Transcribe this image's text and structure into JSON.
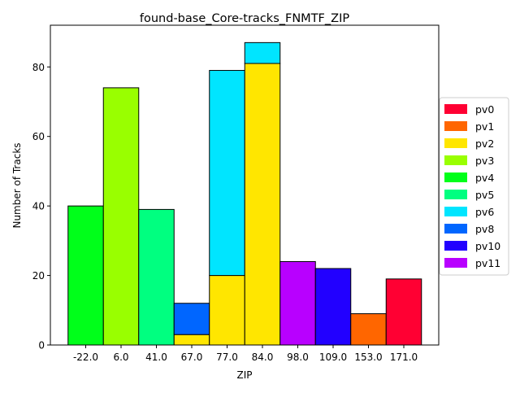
{
  "chart_data": {
    "type": "bar",
    "stacked": true,
    "title": "found-base_Core-tracks_FNMTF_ZIP",
    "xlabel": "ZIP",
    "ylabel": "Number of Tracks",
    "categories": [
      "-22.0",
      "6.0",
      "41.0",
      "67.0",
      "77.0",
      "84.0",
      "98.0",
      "109.0",
      "153.0",
      "171.0"
    ],
    "ylim": [
      0,
      92
    ],
    "yticks": [
      0,
      20,
      40,
      60,
      80
    ],
    "grid": false,
    "legend_position": "right",
    "legend": [
      {
        "name": "pv0",
        "color": "#ff0033"
      },
      {
        "name": "pv1",
        "color": "#ff6600"
      },
      {
        "name": "pv2",
        "color": "#ffe600"
      },
      {
        "name": "pv3",
        "color": "#99ff00"
      },
      {
        "name": "pv4",
        "color": "#00ff1a"
      },
      {
        "name": "pv5",
        "color": "#00ff80"
      },
      {
        "name": "pv6",
        "color": "#00e5ff"
      },
      {
        "name": "pv8",
        "color": "#0066ff"
      },
      {
        "name": "pv10",
        "color": "#2200ff"
      },
      {
        "name": "pv11",
        "color": "#b800ff"
      }
    ],
    "series": [
      {
        "name": "pv0",
        "color": "#ff0033",
        "values": [
          0,
          0,
          0,
          0,
          0,
          0,
          0,
          0,
          0,
          19
        ]
      },
      {
        "name": "pv1",
        "color": "#ff6600",
        "values": [
          0,
          0,
          0,
          0,
          0,
          0,
          0,
          0,
          9,
          0
        ]
      },
      {
        "name": "pv2",
        "color": "#ffe600",
        "values": [
          0,
          0,
          0,
          3,
          20,
          81,
          0,
          0,
          0,
          0
        ]
      },
      {
        "name": "pv3",
        "color": "#99ff00",
        "values": [
          0,
          74,
          0,
          0,
          0,
          0,
          0,
          0,
          0,
          0
        ]
      },
      {
        "name": "pv4",
        "color": "#00ff1a",
        "values": [
          40,
          0,
          0,
          0,
          0,
          0,
          0,
          0,
          0,
          0
        ]
      },
      {
        "name": "pv5",
        "color": "#00ff80",
        "values": [
          0,
          0,
          39,
          0,
          0,
          0,
          0,
          0,
          0,
          0
        ]
      },
      {
        "name": "pv6",
        "color": "#00e5ff",
        "values": [
          0,
          0,
          0,
          0,
          59,
          6,
          0,
          0,
          0,
          0
        ]
      },
      {
        "name": "pv8",
        "color": "#0066ff",
        "values": [
          0,
          0,
          0,
          9,
          0,
          0,
          0,
          0,
          0,
          0
        ]
      },
      {
        "name": "pv10",
        "color": "#2200ff",
        "values": [
          0,
          0,
          0,
          0,
          0,
          0,
          0,
          22,
          0,
          0
        ]
      },
      {
        "name": "pv11",
        "color": "#b800ff",
        "values": [
          0,
          0,
          0,
          0,
          0,
          0,
          24,
          0,
          0,
          0
        ]
      }
    ]
  }
}
